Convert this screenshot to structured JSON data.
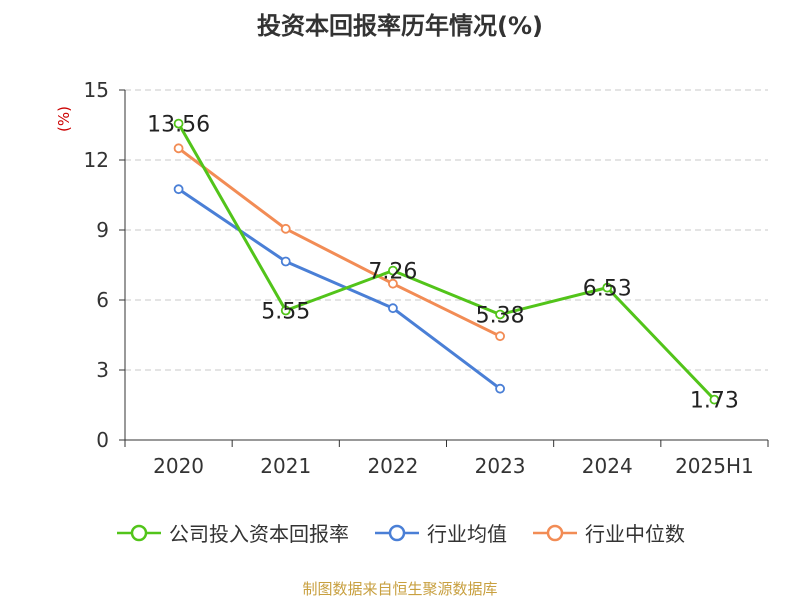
{
  "chart_data": {
    "type": "line",
    "title": "投资本回报率历年情况(%)",
    "ylabel": "(%)",
    "categories": [
      "2020",
      "2021",
      "2022",
      "2023",
      "2024",
      "2025H1"
    ],
    "ylim": [
      0,
      15
    ],
    "yticks": [
      0,
      3,
      6,
      9,
      12,
      15
    ],
    "grid": true,
    "legend_position": "bottom",
    "series": [
      {
        "name": "公司投入资本回报率",
        "color": "#52c41a",
        "values": [
          13.56,
          5.55,
          7.26,
          5.38,
          6.53,
          1.73
        ],
        "labels": [
          "13.56",
          "5.55",
          "7.26",
          "5.38",
          "6.53",
          "1.73"
        ]
      },
      {
        "name": "行业均值",
        "color": "#4a7fd6",
        "values": [
          10.75,
          7.65,
          5.65,
          2.2,
          null,
          null
        ]
      },
      {
        "name": "行业中位数",
        "color": "#f28c55",
        "values": [
          12.5,
          9.05,
          6.7,
          4.45,
          null,
          null
        ]
      }
    ]
  },
  "footer": {
    "source": "制图数据来自恒生聚源数据库"
  }
}
